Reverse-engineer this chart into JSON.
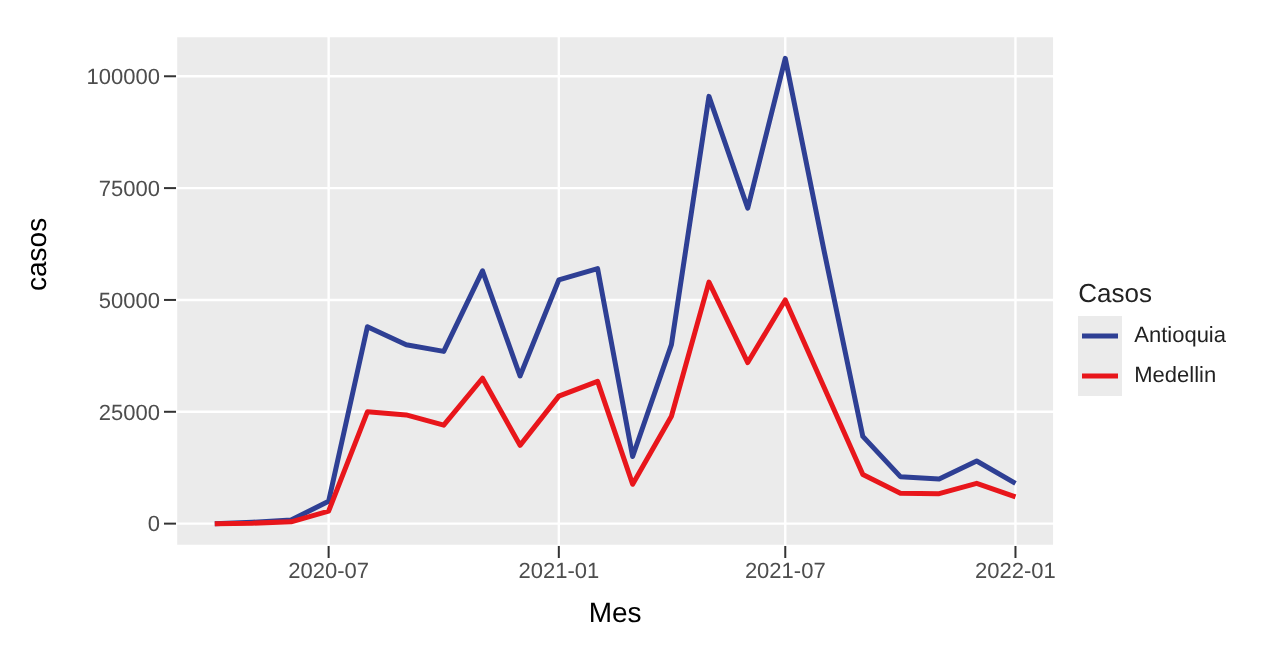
{
  "chart_data": {
    "type": "line",
    "xlabel": "Mes",
    "ylabel": "casos",
    "legend_title": "Casos",
    "x": [
      "2020-04",
      "2020-05",
      "2020-06",
      "2020-07",
      "2020-08",
      "2020-09",
      "2020-10",
      "2020-11",
      "2020-12",
      "2021-01",
      "2021-02",
      "2021-03",
      "2021-04",
      "2021-05",
      "2021-06",
      "2021-07",
      "2021-08",
      "2021-09",
      "2021-10",
      "2021-11",
      "2021-12",
      "2022-01"
    ],
    "series": [
      {
        "name": "Antioquia",
        "color": "#2e3f94",
        "values": [
          0,
          300,
          800,
          5000,
          44000,
          40000,
          38500,
          56500,
          33000,
          54500,
          57000,
          15000,
          40000,
          95500,
          70500,
          104000,
          61000,
          19500,
          10500,
          10000,
          14000,
          9000
        ]
      },
      {
        "name": "Medellin",
        "color": "#e8161b",
        "values": [
          0,
          100,
          400,
          2800,
          25000,
          24300,
          22000,
          32500,
          17500,
          28500,
          31800,
          8800,
          24000,
          54000,
          36000,
          50000,
          30500,
          11000,
          6800,
          6700,
          9000,
          6000
        ]
      }
    ],
    "xlim": [
      "2020-03-01",
      "2022-02-01"
    ],
    "xticks": [
      "2020-07",
      "2021-01",
      "2021-07",
      "2022-01"
    ],
    "ylim": [
      -5000,
      109000
    ],
    "yticks": [
      0,
      25000,
      50000,
      75000,
      100000
    ],
    "grid": true,
    "legend": "right",
    "marker": "none",
    "line_style": "solid"
  }
}
